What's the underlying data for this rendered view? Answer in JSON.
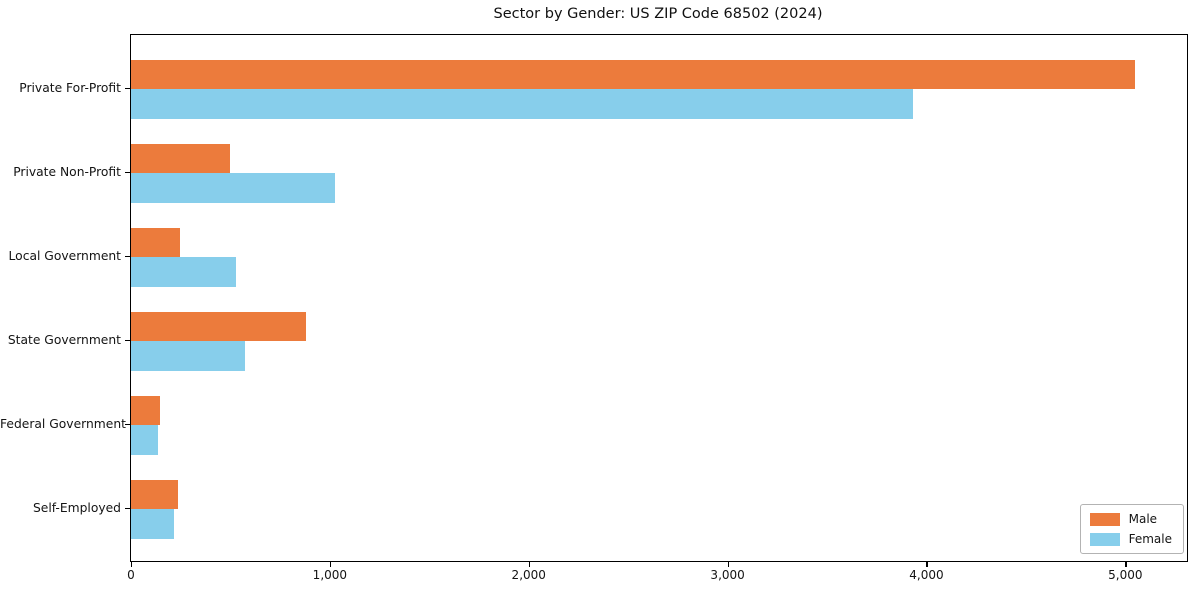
{
  "chart_data": {
    "type": "bar",
    "orientation": "horizontal",
    "title": "Sector by Gender: US ZIP Code 68502 (2024)",
    "categories": [
      "Private For-Profit",
      "Private Non-Profit",
      "Local Government",
      "State Government",
      "Federal Government",
      "Self-Employed"
    ],
    "series": [
      {
        "name": "Male",
        "color": "#EC7B3C",
        "values": [
          5050,
          500,
          245,
          880,
          145,
          235
        ]
      },
      {
        "name": "Female",
        "color": "#87CEEB",
        "values": [
          3930,
          1025,
          530,
          575,
          135,
          215
        ]
      }
    ],
    "xlabel": "",
    "ylabel": "",
    "xlim": [
      0,
      5310
    ],
    "xticks": {
      "values": [
        0,
        1000,
        2000,
        3000,
        4000,
        5000
      ],
      "labels": [
        "0",
        "1,000",
        "2,000",
        "3,000",
        "4,000",
        "5,000"
      ]
    },
    "grid": false,
    "legend": {
      "position": "lower right",
      "labels": [
        "Male",
        "Female"
      ]
    },
    "colors": {
      "background": "#ffffff",
      "spine": "#000000",
      "text": "#141414",
      "legend_border": "#b3b3b3"
    }
  }
}
